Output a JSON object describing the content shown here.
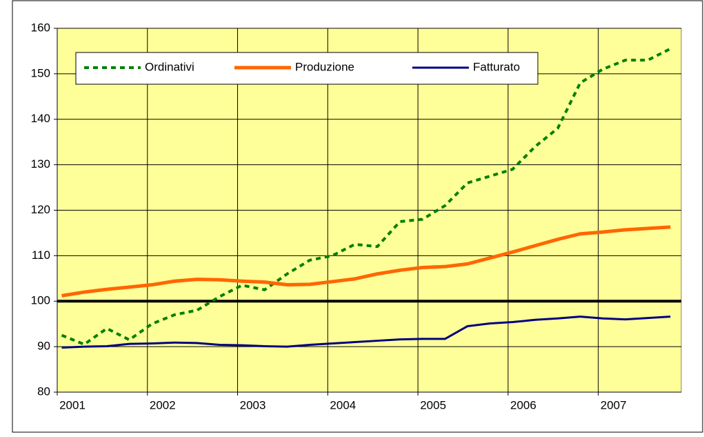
{
  "chart_data": {
    "type": "line",
    "x": [
      2001.05,
      2001.3,
      2001.55,
      2001.8,
      2002.05,
      2002.3,
      2002.55,
      2002.8,
      2003.05,
      2003.3,
      2003.55,
      2003.8,
      2004.05,
      2004.3,
      2004.55,
      2004.8,
      2005.05,
      2005.3,
      2005.55,
      2005.8,
      2006.05,
      2006.3,
      2006.55,
      2006.8,
      2007.05,
      2007.3,
      2007.55,
      2007.8
    ],
    "series": [
      {
        "name": "Ordinativi",
        "color": "#008000",
        "style": "dashed",
        "values": [
          92.5,
          90.5,
          94,
          91.5,
          95,
          97,
          98,
          101,
          103.5,
          102.5,
          106,
          109,
          110,
          112.5,
          112,
          117.5,
          118,
          121,
          126,
          127.5,
          129,
          134,
          138,
          148,
          151,
          153,
          153,
          155.5
        ]
      },
      {
        "name": "Produzione",
        "color": "#ff6600",
        "style": "solid",
        "values": [
          101.2,
          102,
          102.6,
          103.1,
          103.6,
          104.4,
          104.8,
          104.7,
          104.4,
          104.2,
          103.6,
          103.7,
          104.3,
          104.9,
          106,
          106.8,
          107.4,
          107.6,
          108.2,
          109.5,
          110.8,
          112.2,
          113.6,
          114.8,
          115.2,
          115.7,
          116,
          116.3
        ]
      },
      {
        "name": "Fatturato",
        "color": "#000080",
        "style": "solid",
        "values": [
          89.8,
          90,
          90.1,
          90.6,
          90.7,
          90.9,
          90.8,
          90.4,
          90.3,
          90.1,
          90,
          90.4,
          90.7,
          91,
          91.3,
          91.6,
          91.7,
          91.7,
          94.5,
          95.1,
          95.4,
          95.9,
          96.2,
          96.6,
          96.2,
          96,
          96.3,
          96.6
        ]
      }
    ],
    "xlim": [
      2001,
      2007.92
    ],
    "xticks": [
      2001,
      2002,
      2003,
      2004,
      2005,
      2006,
      2007
    ],
    "ylim": [
      80,
      160
    ],
    "yticks": [
      80,
      90,
      100,
      110,
      120,
      130,
      140,
      150,
      160
    ],
    "reference_line": 100,
    "grid": true,
    "background": "#ffff99",
    "legend": "top-left"
  }
}
